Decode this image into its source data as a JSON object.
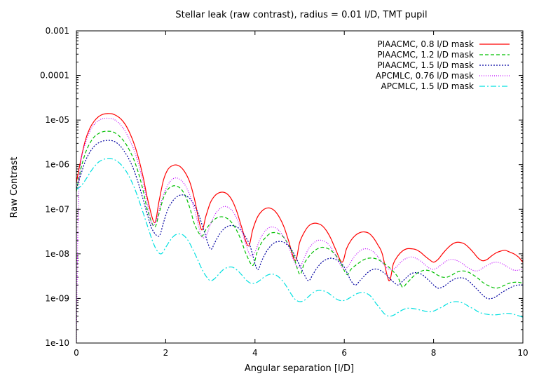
{
  "chart_data": {
    "type": "line",
    "title": "Stellar leak (raw contrast), radius = 0.01 l/D, TMT pupil",
    "xlabel": "Angular separation [l/D]",
    "ylabel": "Raw Contrast",
    "xlim": [
      0,
      10
    ],
    "ylim": [
      1e-10,
      0.001
    ],
    "yscale": "log",
    "grid": false,
    "legend_position": "top-right",
    "x_ticks": [
      {
        "value": 0,
        "label": "0"
      },
      {
        "value": 2,
        "label": "2"
      },
      {
        "value": 4,
        "label": "4"
      },
      {
        "value": 6,
        "label": "6"
      },
      {
        "value": 8,
        "label": "8"
      },
      {
        "value": 10,
        "label": "10"
      }
    ],
    "y_ticks": [
      {
        "value": 0.001,
        "label": "0.001"
      },
      {
        "value": 0.0001,
        "label": "0.0001"
      },
      {
        "value": 1e-05,
        "label": "1e-05"
      },
      {
        "value": 1e-06,
        "label": "1e-06"
      },
      {
        "value": 1e-07,
        "label": "1e-07"
      },
      {
        "value": 1e-08,
        "label": "1e-08"
      },
      {
        "value": 1e-09,
        "label": "1e-09"
      },
      {
        "value": 1e-10,
        "label": "1e-10"
      }
    ],
    "series": [
      {
        "name": "PIAACMC, 0.8 l/D mask",
        "color": "#ff0000",
        "dash": "",
        "x": [
          0,
          0.1,
          0.2,
          0.3,
          0.4,
          0.5,
          0.6,
          0.7,
          0.8,
          0.9,
          1.0,
          1.1,
          1.2,
          1.3,
          1.4,
          1.5,
          1.6,
          1.75,
          1.85,
          1.95,
          2.05,
          2.15,
          2.25,
          2.35,
          2.45,
          2.55,
          2.65,
          2.8,
          2.9,
          3.0,
          3.1,
          3.2,
          3.3,
          3.4,
          3.5,
          3.6,
          3.7,
          3.85,
          3.95,
          4.05,
          4.15,
          4.25,
          4.35,
          4.45,
          4.55,
          4.65,
          4.75,
          4.9,
          5.0,
          5.1,
          5.2,
          5.3,
          5.4,
          5.5,
          5.6,
          5.7,
          5.8,
          5.95,
          6.05,
          6.15,
          6.25,
          6.35,
          6.45,
          6.55,
          6.65,
          6.75,
          6.85,
          7.0,
          7.1,
          7.2,
          7.3,
          7.4,
          7.5,
          7.6,
          7.7,
          7.8,
          7.9,
          8.0,
          8.1,
          8.2,
          8.3,
          8.4,
          8.5,
          8.6,
          8.7,
          8.8,
          8.9,
          9.0,
          9.1,
          9.2,
          9.3,
          9.4,
          9.5,
          9.6,
          9.7,
          9.8,
          9.9,
          10.0
        ],
        "y": [
          4e-07,
          1.3e-06,
          3.5e-06,
          6.5e-06,
          9.5e-06,
          1.2e-05,
          1.35e-05,
          1.4e-05,
          1.38e-05,
          1.25e-05,
          1.05e-05,
          7.8e-06,
          5e-06,
          2.8e-06,
          1.3e-06,
          5e-07,
          1.6e-07,
          5e-08,
          1.5e-07,
          4.5e-07,
          7.8e-07,
          9.5e-07,
          9.8e-07,
          8.6e-07,
          6.3e-07,
          3.8e-07,
          1.6e-07,
          3.5e-08,
          7e-08,
          1.4e-07,
          2e-07,
          2.35e-07,
          2.4e-07,
          2.1e-07,
          1.5e-07,
          8.5e-08,
          4e-08,
          1.5e-08,
          3.5e-08,
          6.5e-08,
          9e-08,
          1.05e-07,
          1.05e-07,
          9e-08,
          6.5e-08,
          4e-08,
          2e-08,
          7e-09,
          1.8e-08,
          3e-08,
          4.2e-08,
          4.8e-08,
          4.8e-08,
          4.3e-08,
          3.3e-08,
          2.2e-08,
          1.3e-08,
          6.5e-09,
          1.3e-08,
          2e-08,
          2.6e-08,
          3e-08,
          3.1e-08,
          2.9e-08,
          2.3e-08,
          1.6e-08,
          1e-08,
          2.5e-09,
          6e-09,
          9e-09,
          1.15e-08,
          1.3e-08,
          1.3e-08,
          1.25e-08,
          1.1e-08,
          9e-09,
          7.5e-09,
          6.5e-09,
          7.5e-09,
          1e-08,
          1.3e-08,
          1.6e-08,
          1.8e-08,
          1.8e-08,
          1.65e-08,
          1.35e-08,
          1.05e-08,
          8e-09,
          7e-09,
          7.5e-09,
          9e-09,
          1.05e-08,
          1.15e-08,
          1.2e-08,
          1.1e-08,
          1e-08,
          8.5e-09,
          6.5e-09
        ]
      },
      {
        "name": "PIAACMC, 1.2 l/D mask",
        "color": "#00c000",
        "dash": "5,3",
        "x": [
          0,
          0.1,
          0.2,
          0.3,
          0.4,
          0.5,
          0.6,
          0.7,
          0.8,
          0.9,
          1.0,
          1.1,
          1.2,
          1.3,
          1.4,
          1.5,
          1.6,
          1.75,
          1.85,
          1.95,
          2.05,
          2.15,
          2.25,
          2.35,
          2.45,
          2.55,
          2.65,
          2.8,
          2.9,
          3.0,
          3.1,
          3.2,
          3.3,
          3.4,
          3.5,
          3.6,
          3.7,
          3.8,
          3.95,
          4.05,
          4.15,
          4.25,
          4.35,
          4.45,
          4.55,
          4.65,
          4.75,
          4.85,
          5.0,
          5.1,
          5.2,
          5.3,
          5.4,
          5.5,
          5.6,
          5.7,
          5.8,
          5.9,
          6.05,
          6.15,
          6.25,
          6.35,
          6.45,
          6.55,
          6.65,
          6.75,
          6.85,
          6.95,
          7.05,
          7.2,
          7.3,
          7.4,
          7.5,
          7.6,
          7.7,
          7.8,
          7.9,
          8.0,
          8.1,
          8.2,
          8.3,
          8.4,
          8.5,
          8.6,
          8.7,
          8.8,
          8.9,
          9.0,
          9.1,
          9.2,
          9.3,
          9.4,
          9.5,
          9.6,
          9.7,
          9.8,
          9.9,
          10.0
        ],
        "y": [
          2.5e-07,
          8e-07,
          1.8e-06,
          3e-06,
          4.2e-06,
          5e-06,
          5.5e-06,
          5.6e-06,
          5.5e-06,
          4.9e-06,
          4e-06,
          3e-06,
          2e-06,
          1.2e-06,
          6e-07,
          2.5e-07,
          9e-08,
          4e-08,
          8e-08,
          1.8e-07,
          2.8e-07,
          3.3e-07,
          3.3e-07,
          2.8e-07,
          1.9e-07,
          1e-07,
          4.5e-08,
          2.5e-08,
          3.5e-08,
          4.8e-08,
          6e-08,
          6.7e-08,
          6.7e-08,
          6e-08,
          4.7e-08,
          3.2e-08,
          1.9e-08,
          1e-08,
          5.5e-09,
          1.1e-08,
          1.8e-08,
          2.4e-08,
          2.9e-08,
          3e-08,
          2.8e-08,
          2.3e-08,
          1.6e-08,
          1e-08,
          3.5e-09,
          6e-09,
          8.5e-09,
          1.1e-08,
          1.3e-08,
          1.4e-08,
          1.35e-08,
          1.2e-08,
          9.5e-09,
          7e-09,
          3.5e-09,
          4.5e-09,
          5.5e-09,
          6.5e-09,
          7.5e-09,
          8e-09,
          8e-09,
          7.5e-09,
          6.5e-09,
          5.5e-09,
          4.5e-09,
          3e-09,
          1.8e-09,
          2.2e-09,
          2.8e-09,
          3.5e-09,
          4e-09,
          4.3e-09,
          4.2e-09,
          3.8e-09,
          3.3e-09,
          3e-09,
          3e-09,
          3.3e-09,
          3.8e-09,
          4.1e-09,
          4.1e-09,
          3.8e-09,
          3.3e-09,
          2.8e-09,
          2.3e-09,
          2e-09,
          1.8e-09,
          1.7e-09,
          1.8e-09,
          2e-09,
          2.2e-09,
          2.3e-09,
          2.3e-09,
          2.2e-09
        ]
      },
      {
        "name": "PIAACMC, 1.5 l/D mask",
        "color": "#0000a0",
        "dash": "2,2",
        "x": [
          0,
          0.1,
          0.2,
          0.3,
          0.4,
          0.5,
          0.6,
          0.7,
          0.8,
          0.9,
          1.0,
          1.1,
          1.2,
          1.3,
          1.4,
          1.5,
          1.6,
          1.7,
          1.85,
          1.95,
          2.05,
          2.15,
          2.25,
          2.35,
          2.45,
          2.55,
          2.65,
          2.75,
          2.85,
          3.0,
          3.1,
          3.2,
          3.3,
          3.4,
          3.5,
          3.6,
          3.7,
          3.8,
          3.9,
          4.05,
          4.15,
          4.25,
          4.35,
          4.45,
          4.55,
          4.65,
          4.75,
          4.85,
          4.95,
          5.1,
          5.2,
          5.3,
          5.4,
          5.5,
          5.6,
          5.7,
          5.8,
          5.9,
          6.0,
          6.15,
          6.25,
          6.35,
          6.45,
          6.55,
          6.65,
          6.75,
          6.85,
          6.95,
          7.05,
          7.2,
          7.3,
          7.4,
          7.5,
          7.6,
          7.7,
          7.8,
          7.9,
          8.0,
          8.1,
          8.2,
          8.3,
          8.4,
          8.5,
          8.6,
          8.7,
          8.8,
          8.9,
          9.0,
          9.1,
          9.2,
          9.3,
          9.4,
          9.5,
          9.6,
          9.7,
          9.8,
          9.9,
          10.0
        ],
        "y": [
          3e-07,
          6e-07,
          1.2e-06,
          1.9e-06,
          2.6e-06,
          3.1e-06,
          3.4e-06,
          3.5e-06,
          3.45e-06,
          3.1e-06,
          2.5e-06,
          1.8e-06,
          1.2e-06,
          7e-07,
          3.5e-07,
          1.6e-07,
          7e-08,
          3.5e-08,
          2.5e-08,
          5e-08,
          1e-07,
          1.5e-07,
          1.9e-07,
          2.1e-07,
          2e-07,
          1.7e-07,
          1.2e-07,
          7e-08,
          3.5e-08,
          1.3e-08,
          1.8e-08,
          2.7e-08,
          3.6e-08,
          4.2e-08,
          4.3e-08,
          4e-08,
          3.2e-08,
          2.3e-08,
          1.4e-08,
          4.5e-09,
          7e-09,
          1.1e-08,
          1.5e-08,
          1.8e-08,
          1.9e-08,
          1.8e-08,
          1.5e-08,
          1.1e-08,
          7e-09,
          3.5e-09,
          2.5e-09,
          3.5e-09,
          5e-09,
          6.5e-09,
          7.5e-09,
          8e-09,
          7.5e-09,
          6.5e-09,
          5e-09,
          2.5e-09,
          2e-09,
          2.5e-09,
          3.2e-09,
          4e-09,
          4.5e-09,
          4.5e-09,
          4e-09,
          3.3e-09,
          2.6e-09,
          2e-09,
          2.4e-09,
          3e-09,
          3.6e-09,
          3.8e-09,
          3.6e-09,
          3.1e-09,
          2.5e-09,
          2e-09,
          1.7e-09,
          1.8e-09,
          2.1e-09,
          2.5e-09,
          2.8e-09,
          2.9e-09,
          2.8e-09,
          2.4e-09,
          1.9e-09,
          1.5e-09,
          1.2e-09,
          1e-09,
          1e-09,
          1.1e-09,
          1.3e-09,
          1.5e-09,
          1.7e-09,
          1.9e-09,
          2e-09,
          2e-09
        ]
      },
      {
        "name": "APCMLC, 0.76 l/D mask",
        "color": "#c000ff",
        "dash": "1,2",
        "x": [
          0,
          0.02,
          0.05,
          0.1,
          0.2,
          0.3,
          0.4,
          0.5,
          0.6,
          0.7,
          0.8,
          0.9,
          1.0,
          1.1,
          1.2,
          1.3,
          1.4,
          1.5,
          1.6,
          1.7,
          1.8,
          1.9,
          2.0,
          2.1,
          2.2,
          2.3,
          2.4,
          2.5,
          2.6,
          2.7,
          2.8,
          2.9,
          3.0,
          3.1,
          3.2,
          3.3,
          3.4,
          3.5,
          3.6,
          3.7,
          3.8,
          3.9,
          4.0,
          4.1,
          4.2,
          4.3,
          4.4,
          4.5,
          4.6,
          4.7,
          4.8,
          4.9,
          5.0,
          5.1,
          5.2,
          5.3,
          5.4,
          5.5,
          5.6,
          5.7,
          5.8,
          5.9,
          6.0,
          6.1,
          6.2,
          6.3,
          6.4,
          6.5,
          6.6,
          6.7,
          6.8,
          6.9,
          7.0,
          7.1,
          7.2,
          7.3,
          7.4,
          7.5,
          7.6,
          7.7,
          7.8,
          7.9,
          8.0,
          8.1,
          8.2,
          8.3,
          8.4,
          8.5,
          8.6,
          8.7,
          8.8,
          8.9,
          9.0,
          9.1,
          9.2,
          9.3,
          9.4,
          9.5,
          9.6,
          9.7,
          9.8,
          9.9,
          10.0
        ],
        "y": [
          1e-10,
          5e-09,
          2e-07,
          1.2e-06,
          3e-06,
          5.5e-06,
          8e-06,
          9.8e-06,
          1.08e-05,
          1.1e-05,
          1.07e-05,
          9.5e-06,
          7.6e-06,
          5.5e-06,
          3.5e-06,
          2e-06,
          9.5e-07,
          3.8e-07,
          1.2e-07,
          4.5e-08,
          6e-08,
          1.5e-07,
          2.8e-07,
          4.2e-07,
          5e-07,
          4.8e-07,
          3.9e-07,
          2.6e-07,
          1.4e-07,
          6e-08,
          2.5e-08,
          2.5e-08,
          4.5e-08,
          7.5e-08,
          1e-07,
          1.15e-07,
          1.1e-07,
          9e-08,
          6e-08,
          3.3e-08,
          1.6e-08,
          9e-09,
          1.1e-08,
          2e-08,
          3e-08,
          3.8e-08,
          4e-08,
          3.6e-08,
          2.8e-08,
          1.9e-08,
          1.1e-08,
          6e-09,
          5e-09,
          8e-09,
          1.3e-08,
          1.7e-08,
          2e-08,
          2e-08,
          1.8e-08,
          1.4e-08,
          9.5e-09,
          6e-09,
          4.5e-09,
          5.5e-09,
          8e-09,
          1.05e-08,
          1.25e-08,
          1.3e-08,
          1.2e-08,
          1e-08,
          7.5e-09,
          5.5e-09,
          4.5e-09,
          4.5e-09,
          5.5e-09,
          7e-09,
          8e-09,
          8.5e-09,
          8e-09,
          7e-09,
          5.8e-09,
          4.8e-09,
          4.5e-09,
          5e-09,
          6e-09,
          7e-09,
          7.5e-09,
          7.2e-09,
          6.5e-09,
          5.5e-09,
          4.7e-09,
          4.2e-09,
          4.2e-09,
          4.8e-09,
          5.5e-09,
          6.2e-09,
          6.5e-09,
          6.2e-09,
          5.5e-09,
          4.8e-09,
          4.3e-09,
          4.3e-09,
          4.6e-09
        ]
      },
      {
        "name": "APCMLC, 1.5 l/D mask",
        "color": "#00e0e0",
        "dash": "8,3,2,3",
        "x": [
          0,
          0.1,
          0.2,
          0.3,
          0.4,
          0.5,
          0.6,
          0.7,
          0.8,
          0.9,
          1.0,
          1.1,
          1.2,
          1.3,
          1.4,
          1.5,
          1.6,
          1.7,
          1.8,
          1.9,
          2.0,
          2.1,
          2.2,
          2.3,
          2.4,
          2.5,
          2.6,
          2.7,
          2.8,
          2.9,
          3.0,
          3.1,
          3.2,
          3.3,
          3.4,
          3.5,
          3.6,
          3.7,
          3.8,
          3.9,
          4.0,
          4.1,
          4.2,
          4.3,
          4.4,
          4.5,
          4.6,
          4.7,
          4.8,
          4.9,
          5.0,
          5.1,
          5.2,
          5.3,
          5.4,
          5.5,
          5.6,
          5.7,
          5.8,
          5.9,
          6.0,
          6.1,
          6.2,
          6.3,
          6.4,
          6.5,
          6.6,
          6.7,
          6.8,
          6.9,
          7.0,
          7.1,
          7.2,
          7.3,
          7.4,
          7.5,
          7.6,
          7.7,
          7.8,
          7.9,
          8.0,
          8.1,
          8.2,
          8.3,
          8.4,
          8.5,
          8.6,
          8.7,
          8.8,
          8.9,
          9.0,
          9.1,
          9.2,
          9.3,
          9.4,
          9.5,
          9.6,
          9.7,
          9.8,
          9.9,
          10.0
        ],
        "y": [
          2.8e-07,
          3.3e-07,
          4.5e-07,
          6.5e-07,
          9e-07,
          1.15e-06,
          1.3e-06,
          1.38e-06,
          1.35e-06,
          1.22e-06,
          1e-06,
          7.5e-07,
          5e-07,
          3e-07,
          1.6e-07,
          8e-08,
          4e-08,
          2e-08,
          1.2e-08,
          1e-08,
          1.4e-08,
          2e-08,
          2.6e-08,
          2.8e-08,
          2.6e-08,
          2e-08,
          1.3e-08,
          8e-09,
          4.8e-09,
          3.2e-09,
          2.5e-09,
          2.8e-09,
          3.6e-09,
          4.5e-09,
          5e-09,
          5e-09,
          4.3e-09,
          3.4e-09,
          2.6e-09,
          2.2e-09,
          2.2e-09,
          2.5e-09,
          3e-09,
          3.4e-09,
          3.5e-09,
          3.2e-09,
          2.6e-09,
          1.9e-09,
          1.3e-09,
          9.5e-10,
          8.5e-10,
          9e-10,
          1.1e-09,
          1.35e-09,
          1.5e-09,
          1.5e-09,
          1.4e-09,
          1.2e-09,
          1e-09,
          9e-10,
          9e-10,
          1e-09,
          1.15e-09,
          1.3e-09,
          1.35e-09,
          1.3e-09,
          1.1e-09,
          8e-10,
          6e-10,
          4.5e-10,
          4e-10,
          4.2e-10,
          4.8e-10,
          5.5e-10,
          6e-10,
          6e-10,
          5.8e-10,
          5.5e-10,
          5.2e-10,
          5e-10,
          5.2e-10,
          5.8e-10,
          6.5e-10,
          7.5e-10,
          8.2e-10,
          8.5e-10,
          8.2e-10,
          7.5e-10,
          6.5e-10,
          5.8e-10,
          5e-10,
          4.6e-10,
          4.4e-10,
          4.3e-10,
          4.3e-10,
          4.4e-10,
          4.6e-10,
          4.6e-10,
          4.4e-10,
          4.1e-10,
          3.8e-10
        ]
      }
    ]
  }
}
